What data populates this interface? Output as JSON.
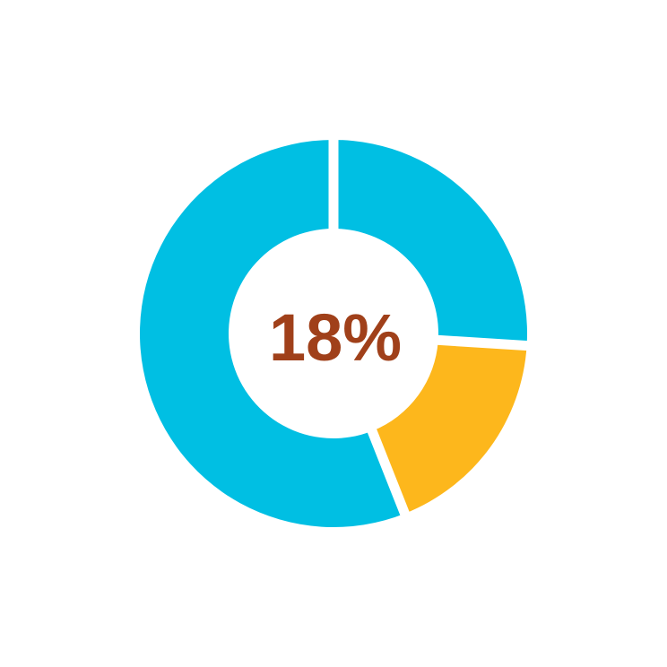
{
  "chart_data": {
    "type": "pie",
    "subtype": "donut",
    "center_label": "18%",
    "slices": [
      {
        "value": 26,
        "color": "#00BFE3"
      },
      {
        "value": 18,
        "color": "#FDB71C"
      },
      {
        "value": 56,
        "color": "#00BFE3"
      }
    ],
    "start_angle": "12 o'clock",
    "direction": "clockwise",
    "center_label_color": "#A0401A",
    "legend": "none"
  }
}
